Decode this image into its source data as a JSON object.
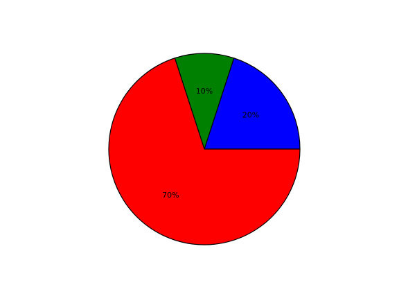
{
  "chart_data": {
    "type": "pie",
    "start_angle_deg": 0,
    "direction": "counterclockwise",
    "slices": [
      {
        "value": 20,
        "label": "20%",
        "color": "#0000ff"
      },
      {
        "value": 10,
        "label": "10%",
        "color": "#008000"
      },
      {
        "value": 70,
        "label": "70%",
        "color": "#ff0000"
      }
    ]
  }
}
